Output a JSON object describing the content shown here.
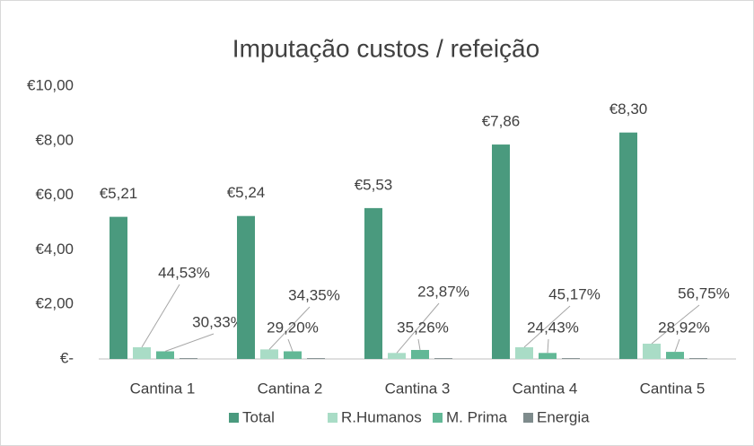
{
  "chart_data": {
    "type": "bar",
    "title": "Imputação custos / refeição",
    "categories": [
      "Cantina 1",
      "Cantina 2",
      "Cantina 3",
      "Cantina 4",
      "Cantina 5"
    ],
    "series": [
      {
        "name": "Total",
        "color": "#4a9a7e",
        "values": [
          5.21,
          5.24,
          5.53,
          7.86,
          8.3
        ],
        "value_labels": [
          "€5,21",
          "€5,24",
          "€5,53",
          "€7,86",
          "€8,30"
        ]
      },
      {
        "name": "R.Humanos",
        "color": "#a9dcc6",
        "values": [
          0.43,
          0.35,
          0.22,
          0.43,
          0.56
        ],
        "annotations": [
          "44,53%",
          "34,35%",
          "23,87%",
          "45,17%",
          "56,75%"
        ]
      },
      {
        "name": "M. Prima",
        "color": "#62b896",
        "values": [
          0.28,
          0.28,
          0.33,
          0.22,
          0.26
        ],
        "annotations": [
          "30,33%",
          "29,20%",
          "35,26%",
          "24,43%",
          "28,92%"
        ]
      },
      {
        "name": "Energia",
        "color": "#7e8b8c",
        "values": [
          0.03,
          0.03,
          0.03,
          0.03,
          0.03
        ]
      }
    ],
    "ylim": [
      0,
      10
    ],
    "yticks": [
      {
        "value": 0,
        "label": "€-"
      },
      {
        "value": 2,
        "label": "€2,00"
      },
      {
        "value": 4,
        "label": "€4,00"
      },
      {
        "value": 6,
        "label": "€6,00"
      },
      {
        "value": 8,
        "label": "€8,00"
      },
      {
        "value": 10,
        "label": "€10,00"
      }
    ],
    "legend": "bottom"
  }
}
